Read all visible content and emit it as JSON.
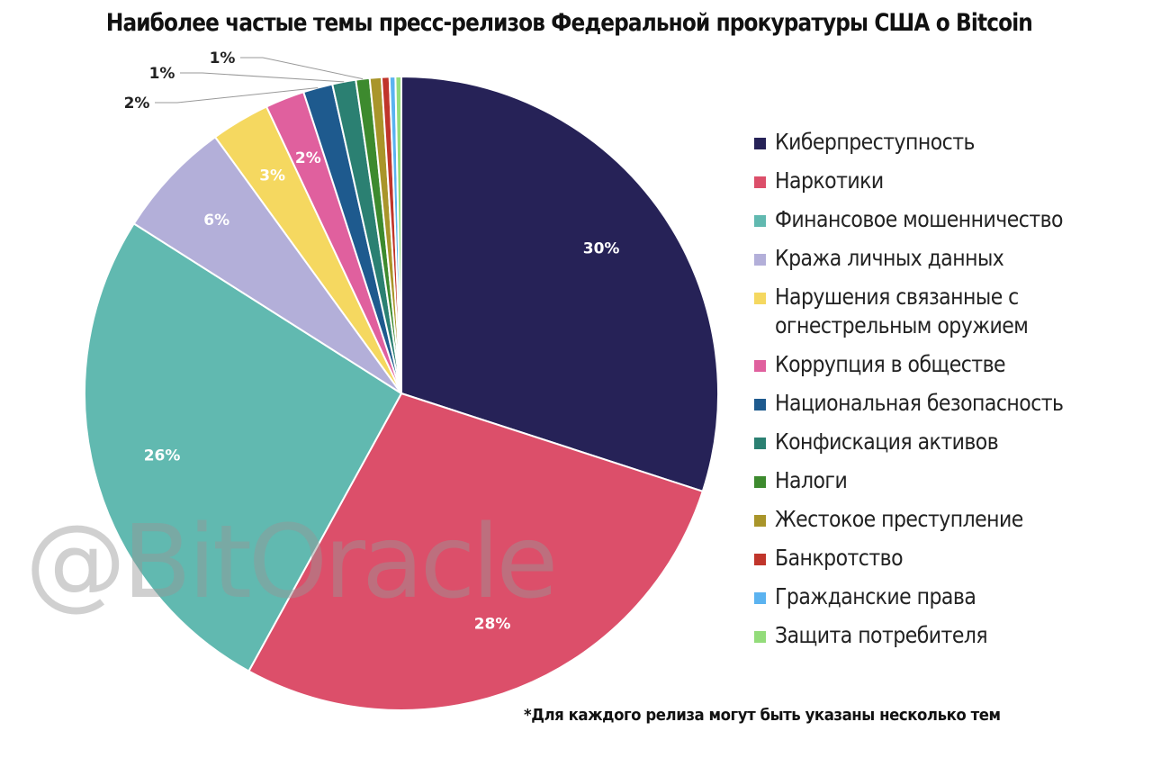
{
  "chart_data": {
    "type": "pie",
    "title": "Наиболее частые темы пресс-релизов Федеральной прокуратуры США о Bitcoin",
    "categories": [
      "Киберпреступность",
      "Наркотики",
      "Финансовое мошенничество",
      "Кража личных данных",
      "Нарушения связанные с огнестрельным оружием",
      "Коррупция в обществе",
      "Национальная безопасность",
      "Конфискация активов",
      "Налоги",
      "Жестокое преступление",
      "Банкротство",
      "Гражданские права",
      "Защита потребителя"
    ],
    "values": [
      30,
      28,
      26,
      6,
      3,
      2,
      1.5,
      1.2,
      0.7,
      0.6,
      0.4,
      0.3,
      0.3
    ],
    "data_labels": [
      "30%",
      "28%",
      "26%",
      "6%",
      "3%",
      "2%",
      "",
      "",
      "",
      "",
      "",
      "",
      ""
    ],
    "outside_labels": [
      "2%",
      "1%",
      "1%"
    ],
    "colors": [
      "#262257",
      "#dc4f6a",
      "#61b9b0",
      "#b3afd9",
      "#f5d860",
      "#e0609e",
      "#1e5a8e",
      "#2b8072",
      "#3d8a2e",
      "#a9952a",
      "#c0352b",
      "#5bb3f0",
      "#93dc7a"
    ],
    "legend_position": "right",
    "footnote": "*Для каждого релиза могут быть указаны несколько тем",
    "watermark": "@BitOracle"
  }
}
